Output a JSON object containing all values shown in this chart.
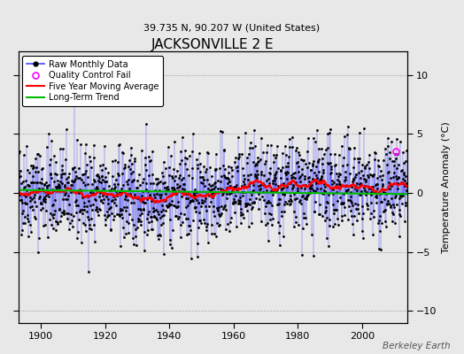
{
  "title": "JACKSONVILLE 2 E",
  "subtitle": "39.735 N, 90.207 W (United States)",
  "ylabel": "Temperature Anomaly (°C)",
  "watermark": "Berkeley Earth",
  "xlim": [
    1893,
    2014
  ],
  "ylim": [
    -11,
    12
  ],
  "yticks": [
    -10,
    -5,
    0,
    5,
    10
  ],
  "xticks": [
    1900,
    1920,
    1940,
    1960,
    1980,
    2000
  ],
  "start_year": 1893,
  "end_year": 2013,
  "raw_color": "#4444FF",
  "moving_avg_color": "#FF0000",
  "trend_color": "#00BB00",
  "qc_color": "#FF00FF",
  "background_color": "#E8E8E8",
  "seed": 42,
  "qc_year": 2010.5,
  "qc_value": 3.5
}
